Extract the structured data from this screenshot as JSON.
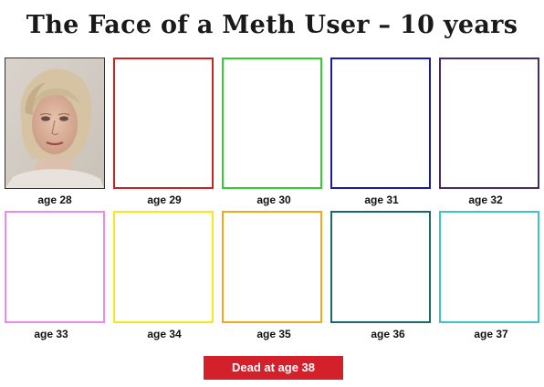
{
  "title": "The Face of a Meth User – 10 years",
  "panels": [
    {
      "label": "age 28",
      "border": "#333333",
      "type": "photo"
    },
    {
      "label": "age 29",
      "border": "#cc2222",
      "type": "empty"
    },
    {
      "label": "age 30",
      "border": "#33cc33",
      "type": "empty"
    },
    {
      "label": "age 31",
      "border": "#1a1aa8",
      "type": "empty"
    },
    {
      "label": "age 32",
      "border": "#4b2a6b",
      "type": "empty"
    },
    {
      "label": "age 33",
      "border": "#ee88ee",
      "type": "empty"
    },
    {
      "label": "age 34",
      "border": "#f2ea1a",
      "type": "empty"
    },
    {
      "label": "age 35",
      "border": "#f2a81a",
      "type": "empty"
    },
    {
      "label": "age 36",
      "border": "#1a6a66",
      "type": "empty"
    },
    {
      "label": "age 37",
      "border": "#3ec4c4",
      "type": "empty"
    }
  ],
  "footer": {
    "label": "Dead at age 38",
    "color": "#d4202b"
  }
}
